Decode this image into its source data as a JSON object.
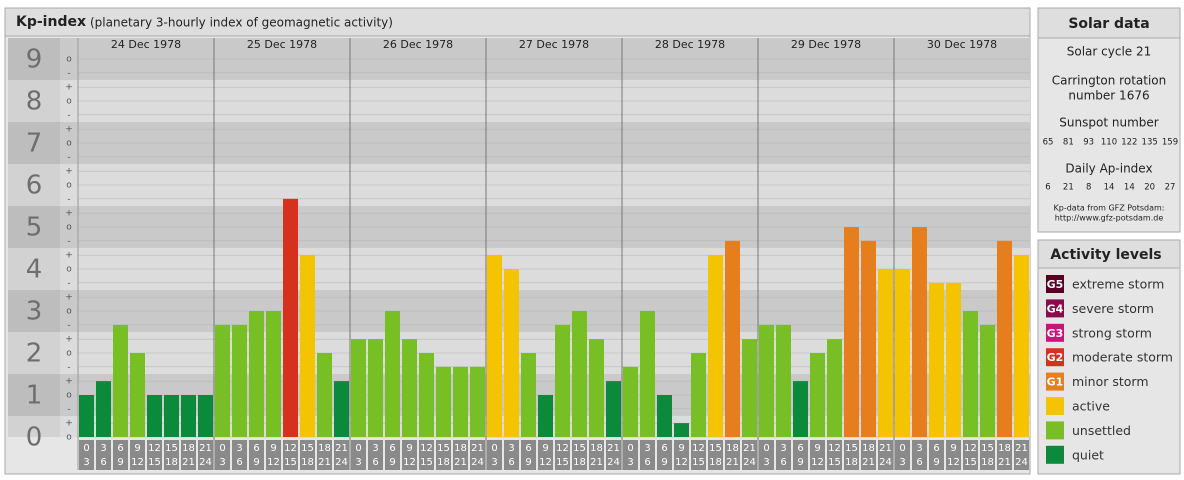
{
  "chart_data": {
    "type": "bar",
    "title": "Kp-index",
    "subtitle": "(planetary 3-hourly index of geomagnetic activity)",
    "ylim": [
      0,
      9.5
    ],
    "yticks": [
      0,
      1,
      2,
      3,
      4,
      5,
      6,
      7,
      8,
      9
    ],
    "minor_ticks": [
      {
        "value": 0,
        "label": "o"
      },
      {
        "value": 0.33,
        "label": "+"
      },
      {
        "value": 0.67,
        "label": "-"
      },
      {
        "value": 1,
        "label": "o"
      },
      {
        "value": 1.33,
        "label": "+"
      },
      {
        "value": 1.67,
        "label": "-"
      },
      {
        "value": 2,
        "label": "o"
      },
      {
        "value": 2.33,
        "label": "+"
      },
      {
        "value": 2.67,
        "label": "-"
      },
      {
        "value": 3,
        "label": "o"
      },
      {
        "value": 3.33,
        "label": "+"
      },
      {
        "value": 3.67,
        "label": "-"
      },
      {
        "value": 4,
        "label": "o"
      },
      {
        "value": 4.33,
        "label": "+"
      },
      {
        "value": 4.67,
        "label": "-"
      },
      {
        "value": 5,
        "label": "o"
      },
      {
        "value": 5.33,
        "label": "+"
      },
      {
        "value": 5.67,
        "label": "-"
      },
      {
        "value": 6,
        "label": "o"
      },
      {
        "value": 6.33,
        "label": "+"
      },
      {
        "value": 6.67,
        "label": "-"
      },
      {
        "value": 7,
        "label": "o"
      },
      {
        "value": 7.33,
        "label": "+"
      },
      {
        "value": 7.67,
        "label": "-"
      },
      {
        "value": 8,
        "label": "o"
      },
      {
        "value": 8.33,
        "label": "+"
      },
      {
        "value": 8.67,
        "label": "-"
      },
      {
        "value": 9,
        "label": "o"
      }
    ],
    "hour_ticks": [
      0,
      3,
      6,
      9,
      12,
      15,
      18,
      21,
      24
    ],
    "series": [
      {
        "name": "24 Dec 1978",
        "values": [
          1,
          1.33,
          2.67,
          2,
          1,
          1,
          1,
          1
        ],
        "colors": [
          "#0a8a3a",
          "#0a8a3a",
          "#78bf26",
          "#78bf26",
          "#0a8a3a",
          "#0a8a3a",
          "#0a8a3a",
          "#0a8a3a"
        ]
      },
      {
        "name": "25 Dec 1978",
        "values": [
          2.67,
          2.67,
          3,
          3,
          5.67,
          4.33,
          2,
          1.33
        ],
        "colors": [
          "#78bf26",
          "#78bf26",
          "#78bf26",
          "#78bf26",
          "#d6301e",
          "#f5c400",
          "#78bf26",
          "#0a8a3a"
        ]
      },
      {
        "name": "26 Dec 1978",
        "values": [
          2.33,
          2.33,
          3,
          2.33,
          2,
          1.67,
          1.67,
          1.67
        ],
        "colors": [
          "#78bf26",
          "#78bf26",
          "#78bf26",
          "#78bf26",
          "#78bf26",
          "#78bf26",
          "#78bf26",
          "#78bf26"
        ]
      },
      {
        "name": "27 Dec 1978",
        "values": [
          4.33,
          4,
          2,
          1,
          2.67,
          3,
          2.33,
          1.33
        ],
        "colors": [
          "#f5c400",
          "#f5c400",
          "#78bf26",
          "#0a8a3a",
          "#78bf26",
          "#78bf26",
          "#78bf26",
          "#0a8a3a"
        ]
      },
      {
        "name": "28 Dec 1978",
        "values": [
          1.67,
          3,
          1,
          0.33,
          2,
          4.33,
          4.67,
          2.33
        ],
        "colors": [
          "#78bf26",
          "#78bf26",
          "#0a8a3a",
          "#0a8a3a",
          "#78bf26",
          "#f5c400",
          "#e67e1e",
          "#78bf26"
        ]
      },
      {
        "name": "29 Dec 1978",
        "values": [
          2.67,
          2.67,
          1.33,
          2,
          2.33,
          5,
          4.67,
          4
        ],
        "colors": [
          "#78bf26",
          "#78bf26",
          "#0a8a3a",
          "#78bf26",
          "#78bf26",
          "#e67e1e",
          "#e67e1e",
          "#f5c400"
        ]
      },
      {
        "name": "30 Dec 1978",
        "values": [
          4,
          5,
          3.67,
          3.67,
          3,
          2.67,
          4.67,
          4.33
        ],
        "colors": [
          "#f5c400",
          "#e67e1e",
          "#f5c400",
          "#f5c400",
          "#78bf26",
          "#78bf26",
          "#e67e1e",
          "#f5c400"
        ]
      }
    ]
  },
  "solar_data": {
    "title": "Solar data",
    "cycle": "Solar cycle 21",
    "carrington": [
      "Carrington rotation",
      "number 1676"
    ],
    "sunspot_title": "Sunspot number",
    "sunspot": [
      65,
      81,
      93,
      110,
      122,
      135,
      159
    ],
    "ap_title": "Daily Ap-index",
    "ap": [
      6,
      21,
      8,
      14,
      14,
      20,
      27
    ],
    "source": [
      "Kp-data from GFZ Potsdam:",
      "http://www.gfz-potsdam.de"
    ]
  },
  "activity_levels": {
    "title": "Activity levels",
    "items": [
      {
        "code": "G5",
        "label": "extreme storm",
        "color": "#5a0024"
      },
      {
        "code": "G4",
        "label": "severe storm",
        "color": "#8a0a4a"
      },
      {
        "code": "G3",
        "label": "strong storm",
        "color": "#c8157c"
      },
      {
        "code": "G2",
        "label": "moderate storm",
        "color": "#d6301e"
      },
      {
        "code": "G1",
        "label": "minor storm",
        "color": "#e67e1e"
      },
      {
        "label": "active",
        "color": "#f5c400"
      },
      {
        "label": "unsettled",
        "color": "#78bf26"
      },
      {
        "label": "quiet",
        "color": "#0a8a3a"
      }
    ]
  }
}
